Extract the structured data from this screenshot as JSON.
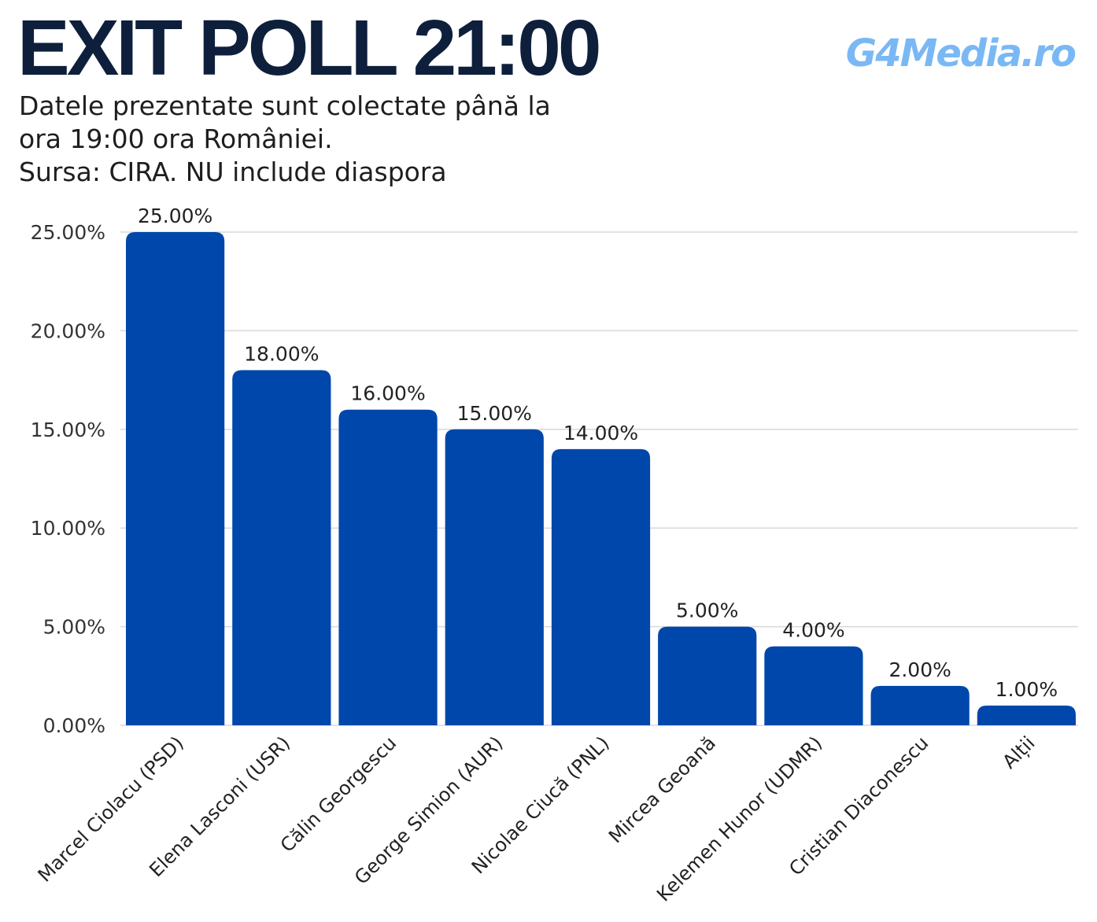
{
  "header": {
    "title": "EXIT POLL 21:00",
    "logo": "G4Media.ro",
    "subtitle_lines": [
      "Datele prezentate sunt colectate până la",
      "ora 19:00 ora României.",
      "Sursa: CIRA. NU include diaspora"
    ]
  },
  "colors": {
    "bar": "#0047ab",
    "title": "#0e1f3c",
    "logo": "#7ab8f5",
    "grid": "#d9d9d9"
  },
  "chart_data": {
    "type": "bar",
    "categories": [
      "Marcel Ciolacu (PSD)",
      "Elena Lasconi (USR)",
      "Călin Georgescu",
      "George Simion (AUR)",
      "Nicolae Ciucă (PNL)",
      "Mircea Geoană",
      "Kelemen Hunor (UDMR)",
      "Cristian Diaconescu",
      "Alții"
    ],
    "values": [
      25.0,
      18.0,
      16.0,
      15.0,
      14.0,
      5.0,
      4.0,
      2.0,
      1.0
    ],
    "value_labels": [
      "25.00%",
      "18.00%",
      "16.00%",
      "15.00%",
      "14.00%",
      "5.00%",
      "4.00%",
      "2.00%",
      "1.00%"
    ],
    "y_ticks": [
      0,
      5,
      10,
      15,
      20,
      25
    ],
    "y_tick_labels": [
      "0.00%",
      "5.00%",
      "10.00%",
      "15.00%",
      "20.00%",
      "25.00%"
    ],
    "ylim": [
      0,
      25
    ],
    "grid": true,
    "xlabel": "",
    "ylabel": ""
  }
}
